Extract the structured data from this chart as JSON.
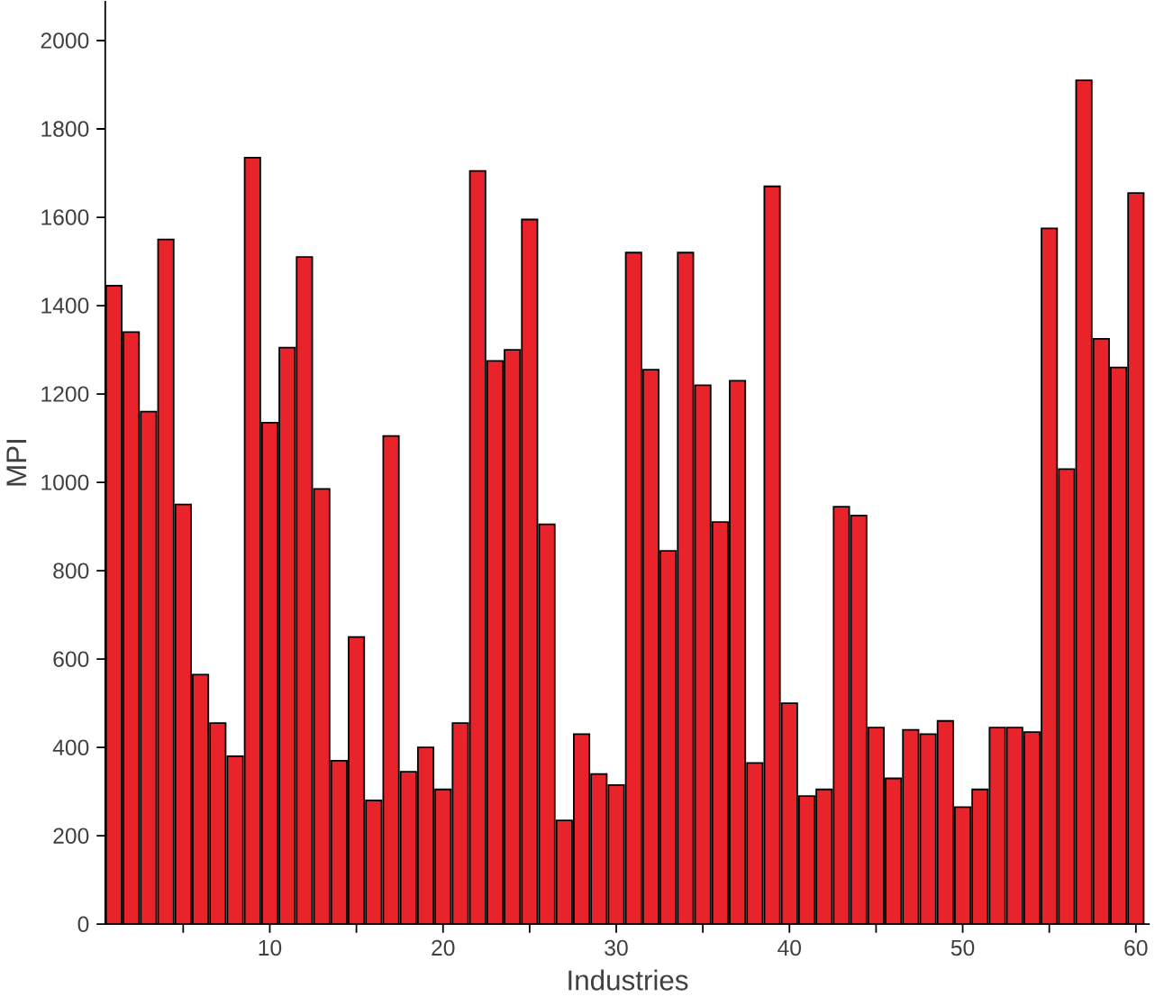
{
  "chart_data": {
    "type": "bar",
    "xlabel": "Industries",
    "ylabel": "MPI",
    "color": "#e8232a",
    "x": [
      1,
      2,
      3,
      4,
      5,
      6,
      7,
      8,
      9,
      10,
      11,
      12,
      13,
      14,
      15,
      16,
      17,
      18,
      19,
      20,
      21,
      22,
      23,
      24,
      25,
      26,
      27,
      28,
      29,
      30,
      31,
      32,
      33,
      34,
      35,
      36,
      37,
      38,
      39,
      40,
      41,
      42,
      43,
      44,
      45,
      46,
      47,
      48,
      49,
      50,
      51,
      52,
      53,
      54,
      55,
      56,
      57,
      58,
      59,
      60
    ],
    "values": [
      1445,
      1340,
      1160,
      1550,
      950,
      565,
      455,
      380,
      1735,
      1135,
      1305,
      1510,
      985,
      370,
      650,
      280,
      1105,
      345,
      400,
      305,
      455,
      1705,
      1275,
      1300,
      1595,
      905,
      235,
      430,
      340,
      315,
      1520,
      1255,
      845,
      1520,
      1220,
      910,
      1230,
      365,
      1670,
      500,
      290,
      305,
      945,
      925,
      445,
      330,
      440,
      430,
      460,
      265,
      305,
      445,
      445,
      435,
      1575,
      1030,
      1910,
      1325,
      1260,
      1655
    ],
    "xlim": [
      0.5,
      60.8
    ],
    "ylim": [
      0,
      2090
    ],
    "xticks": [
      {
        "value": 5,
        "label": null
      },
      10,
      {
        "value": 15,
        "label": null
      },
      20,
      {
        "value": 25,
        "label": null
      },
      30,
      {
        "value": 35,
        "label": null
      },
      40,
      {
        "value": 45,
        "label": null
      },
      50,
      {
        "value": 55,
        "label": null
      },
      60
    ],
    "yticks": [
      0,
      200,
      400,
      600,
      800,
      1000,
      1200,
      1400,
      1600,
      1800,
      2000
    ],
    "grid": false
  }
}
